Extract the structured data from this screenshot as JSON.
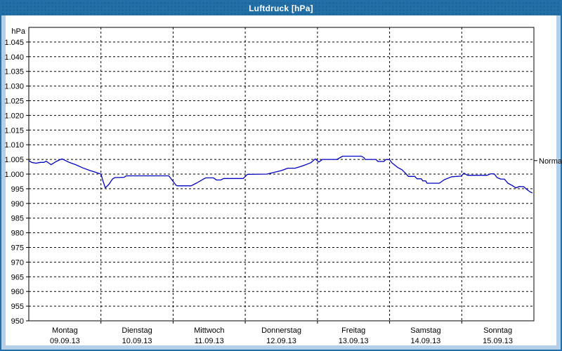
{
  "window": {
    "title": "Luftdruck [hPa]"
  },
  "colors": {
    "titlebar_blue": "#2270A7",
    "titlebar_dot": "#1A5F92",
    "frame_light_blue": "#B4D0E8",
    "panel_white": "#FEFFFE",
    "line_blue": "#0000C0",
    "grid_black": "#000000"
  },
  "chart_data": {
    "type": "line",
    "title": "Luftdruck [hPa]",
    "grid": "dashed horizontal every 5 hPa, dashed vertical at day boundaries",
    "legend_position": "none",
    "y_axis": {
      "unit_label": "hPa",
      "min": 950,
      "max": 1050,
      "tick_step": 5,
      "tick_labels": [
        "1.045",
        "1.040",
        "1.035",
        "1.030",
        "1.025",
        "1.020",
        "1.015",
        "1.010",
        "1.005",
        "1.000",
        "995",
        "990",
        "985",
        "980",
        "975",
        "970",
        "965",
        "960",
        "955",
        "950"
      ]
    },
    "x_axis": {
      "days": [
        {
          "name": "Montag",
          "date": "09.09.13"
        },
        {
          "name": "Dienstag",
          "date": "10.09.13"
        },
        {
          "name": "Mittwoch",
          "date": "11.09.13"
        },
        {
          "name": "Donnerstag",
          "date": "12.09.13"
        },
        {
          "name": "Freitag",
          "date": "13.09.13"
        },
        {
          "name": "Samstag",
          "date": "14.09.13"
        },
        {
          "name": "Sonntag",
          "date": "15.09.13"
        }
      ]
    },
    "annotations": [
      {
        "label": "Normal",
        "y": 1004.6,
        "side": "right"
      }
    ],
    "series": [
      {
        "name": "Luftdruck",
        "color": "#0000C0",
        "points": [
          [
            0.0,
            1004.6
          ],
          [
            0.04,
            1004.0
          ],
          [
            0.1,
            1003.7
          ],
          [
            0.16,
            1004.0
          ],
          [
            0.21,
            1004.0
          ],
          [
            0.24,
            1004.4
          ],
          [
            0.31,
            1003.2
          ],
          [
            0.38,
            1004.3
          ],
          [
            0.46,
            1005.2
          ],
          [
            0.56,
            1004.0
          ],
          [
            0.65,
            1003.2
          ],
          [
            0.75,
            1002.1
          ],
          [
            0.85,
            1001.2
          ],
          [
            0.93,
            1000.6
          ],
          [
            1.0,
            1000.0
          ],
          [
            1.03,
            997.5
          ],
          [
            1.06,
            995.3
          ],
          [
            1.11,
            996.5
          ],
          [
            1.16,
            998.3
          ],
          [
            1.19,
            998.8
          ],
          [
            1.32,
            998.9
          ],
          [
            1.35,
            999.4
          ],
          [
            1.94,
            999.4
          ],
          [
            2.0,
            997.5
          ],
          [
            2.04,
            996.2
          ],
          [
            2.06,
            996.0
          ],
          [
            2.25,
            996.0
          ],
          [
            2.33,
            997.0
          ],
          [
            2.42,
            998.3
          ],
          [
            2.45,
            998.7
          ],
          [
            2.56,
            998.7
          ],
          [
            2.6,
            998.0
          ],
          [
            2.66,
            998.0
          ],
          [
            2.7,
            998.5
          ],
          [
            2.97,
            998.5
          ],
          [
            3.03,
            999.9
          ],
          [
            3.3,
            1000.0
          ],
          [
            3.4,
            1000.6
          ],
          [
            3.5,
            1001.2
          ],
          [
            3.59,
            1002.0
          ],
          [
            3.69,
            1002.0
          ],
          [
            3.77,
            1002.6
          ],
          [
            3.85,
            1003.3
          ],
          [
            3.91,
            1003.9
          ],
          [
            3.97,
            1005.2
          ],
          [
            4.02,
            1004.1
          ],
          [
            4.07,
            1005.0
          ],
          [
            4.27,
            1005.0
          ],
          [
            4.35,
            1006.1
          ],
          [
            4.61,
            1006.1
          ],
          [
            4.65,
            1005.5
          ],
          [
            4.66,
            1005.0
          ],
          [
            4.81,
            1005.0
          ],
          [
            4.84,
            1004.3
          ],
          [
            4.92,
            1004.3
          ],
          [
            4.95,
            1005.0
          ],
          [
            5.0,
            1004.9
          ],
          [
            5.03,
            1003.9
          ],
          [
            5.11,
            1002.3
          ],
          [
            5.17,
            1001.5
          ],
          [
            5.22,
            1000.3
          ],
          [
            5.26,
            999.2
          ],
          [
            5.35,
            999.2
          ],
          [
            5.38,
            998.4
          ],
          [
            5.44,
            998.4
          ],
          [
            5.46,
            997.7
          ],
          [
            5.5,
            997.7
          ],
          [
            5.52,
            996.9
          ],
          [
            5.69,
            996.9
          ],
          [
            5.76,
            998.1
          ],
          [
            5.86,
            999.1
          ],
          [
            5.99,
            999.3
          ],
          [
            6.03,
            1000.3
          ],
          [
            6.08,
            999.6
          ],
          [
            6.35,
            999.6
          ],
          [
            6.4,
            1000.1
          ],
          [
            6.45,
            1000.1
          ],
          [
            6.49,
            998.8
          ],
          [
            6.54,
            998.3
          ],
          [
            6.59,
            998.3
          ],
          [
            6.64,
            996.9
          ],
          [
            6.7,
            996.1
          ],
          [
            6.75,
            995.3
          ],
          [
            6.8,
            995.8
          ],
          [
            6.86,
            995.7
          ],
          [
            6.91,
            994.6
          ],
          [
            6.95,
            993.9
          ],
          [
            6.98,
            993.6
          ]
        ]
      }
    ]
  }
}
